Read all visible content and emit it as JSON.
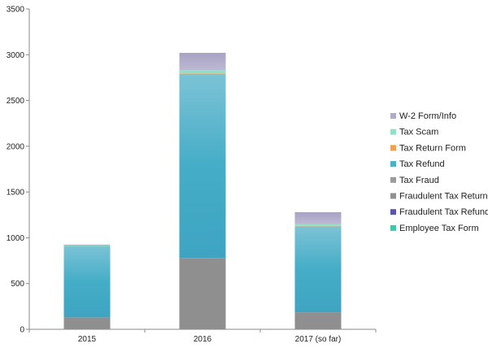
{
  "chart_data": {
    "type": "bar",
    "stacked": true,
    "categories": [
      "2015",
      "2016",
      "2017 (so far)"
    ],
    "ylim": [
      0,
      3500
    ],
    "yticks": [
      0,
      500,
      1000,
      1500,
      2000,
      2500,
      3000,
      3500
    ],
    "grid": false,
    "legend_position": "right",
    "series": [
      {
        "name": "Employee Tax Form",
        "color": "#3fc8a8",
        "values": [
          0,
          0,
          0
        ]
      },
      {
        "name": "Fraudulent Tax Refund",
        "color": "#5a55a8",
        "values": [
          0,
          0,
          0
        ]
      },
      {
        "name": "Fraudulent Tax Return",
        "color": "#8f8f8f",
        "values": [
          130,
          780,
          185
        ]
      },
      {
        "name": "Tax Fraud",
        "color": "#9b9b9b",
        "values": [
          0,
          0,
          0
        ]
      },
      {
        "name": "Tax Refund",
        "color": "#4aafc7",
        "values": [
          780,
          2010,
          940
        ]
      },
      {
        "name": "Tax Return Form",
        "color": "#f0a050",
        "values": [
          0,
          5,
          5
        ]
      },
      {
        "name": "Tax Scam",
        "color": "#90e0c8",
        "values": [
          5,
          35,
          20
        ]
      },
      {
        "name": "W-2 Form/Info",
        "color": "#b0aac8",
        "values": [
          10,
          190,
          130
        ]
      }
    ]
  }
}
